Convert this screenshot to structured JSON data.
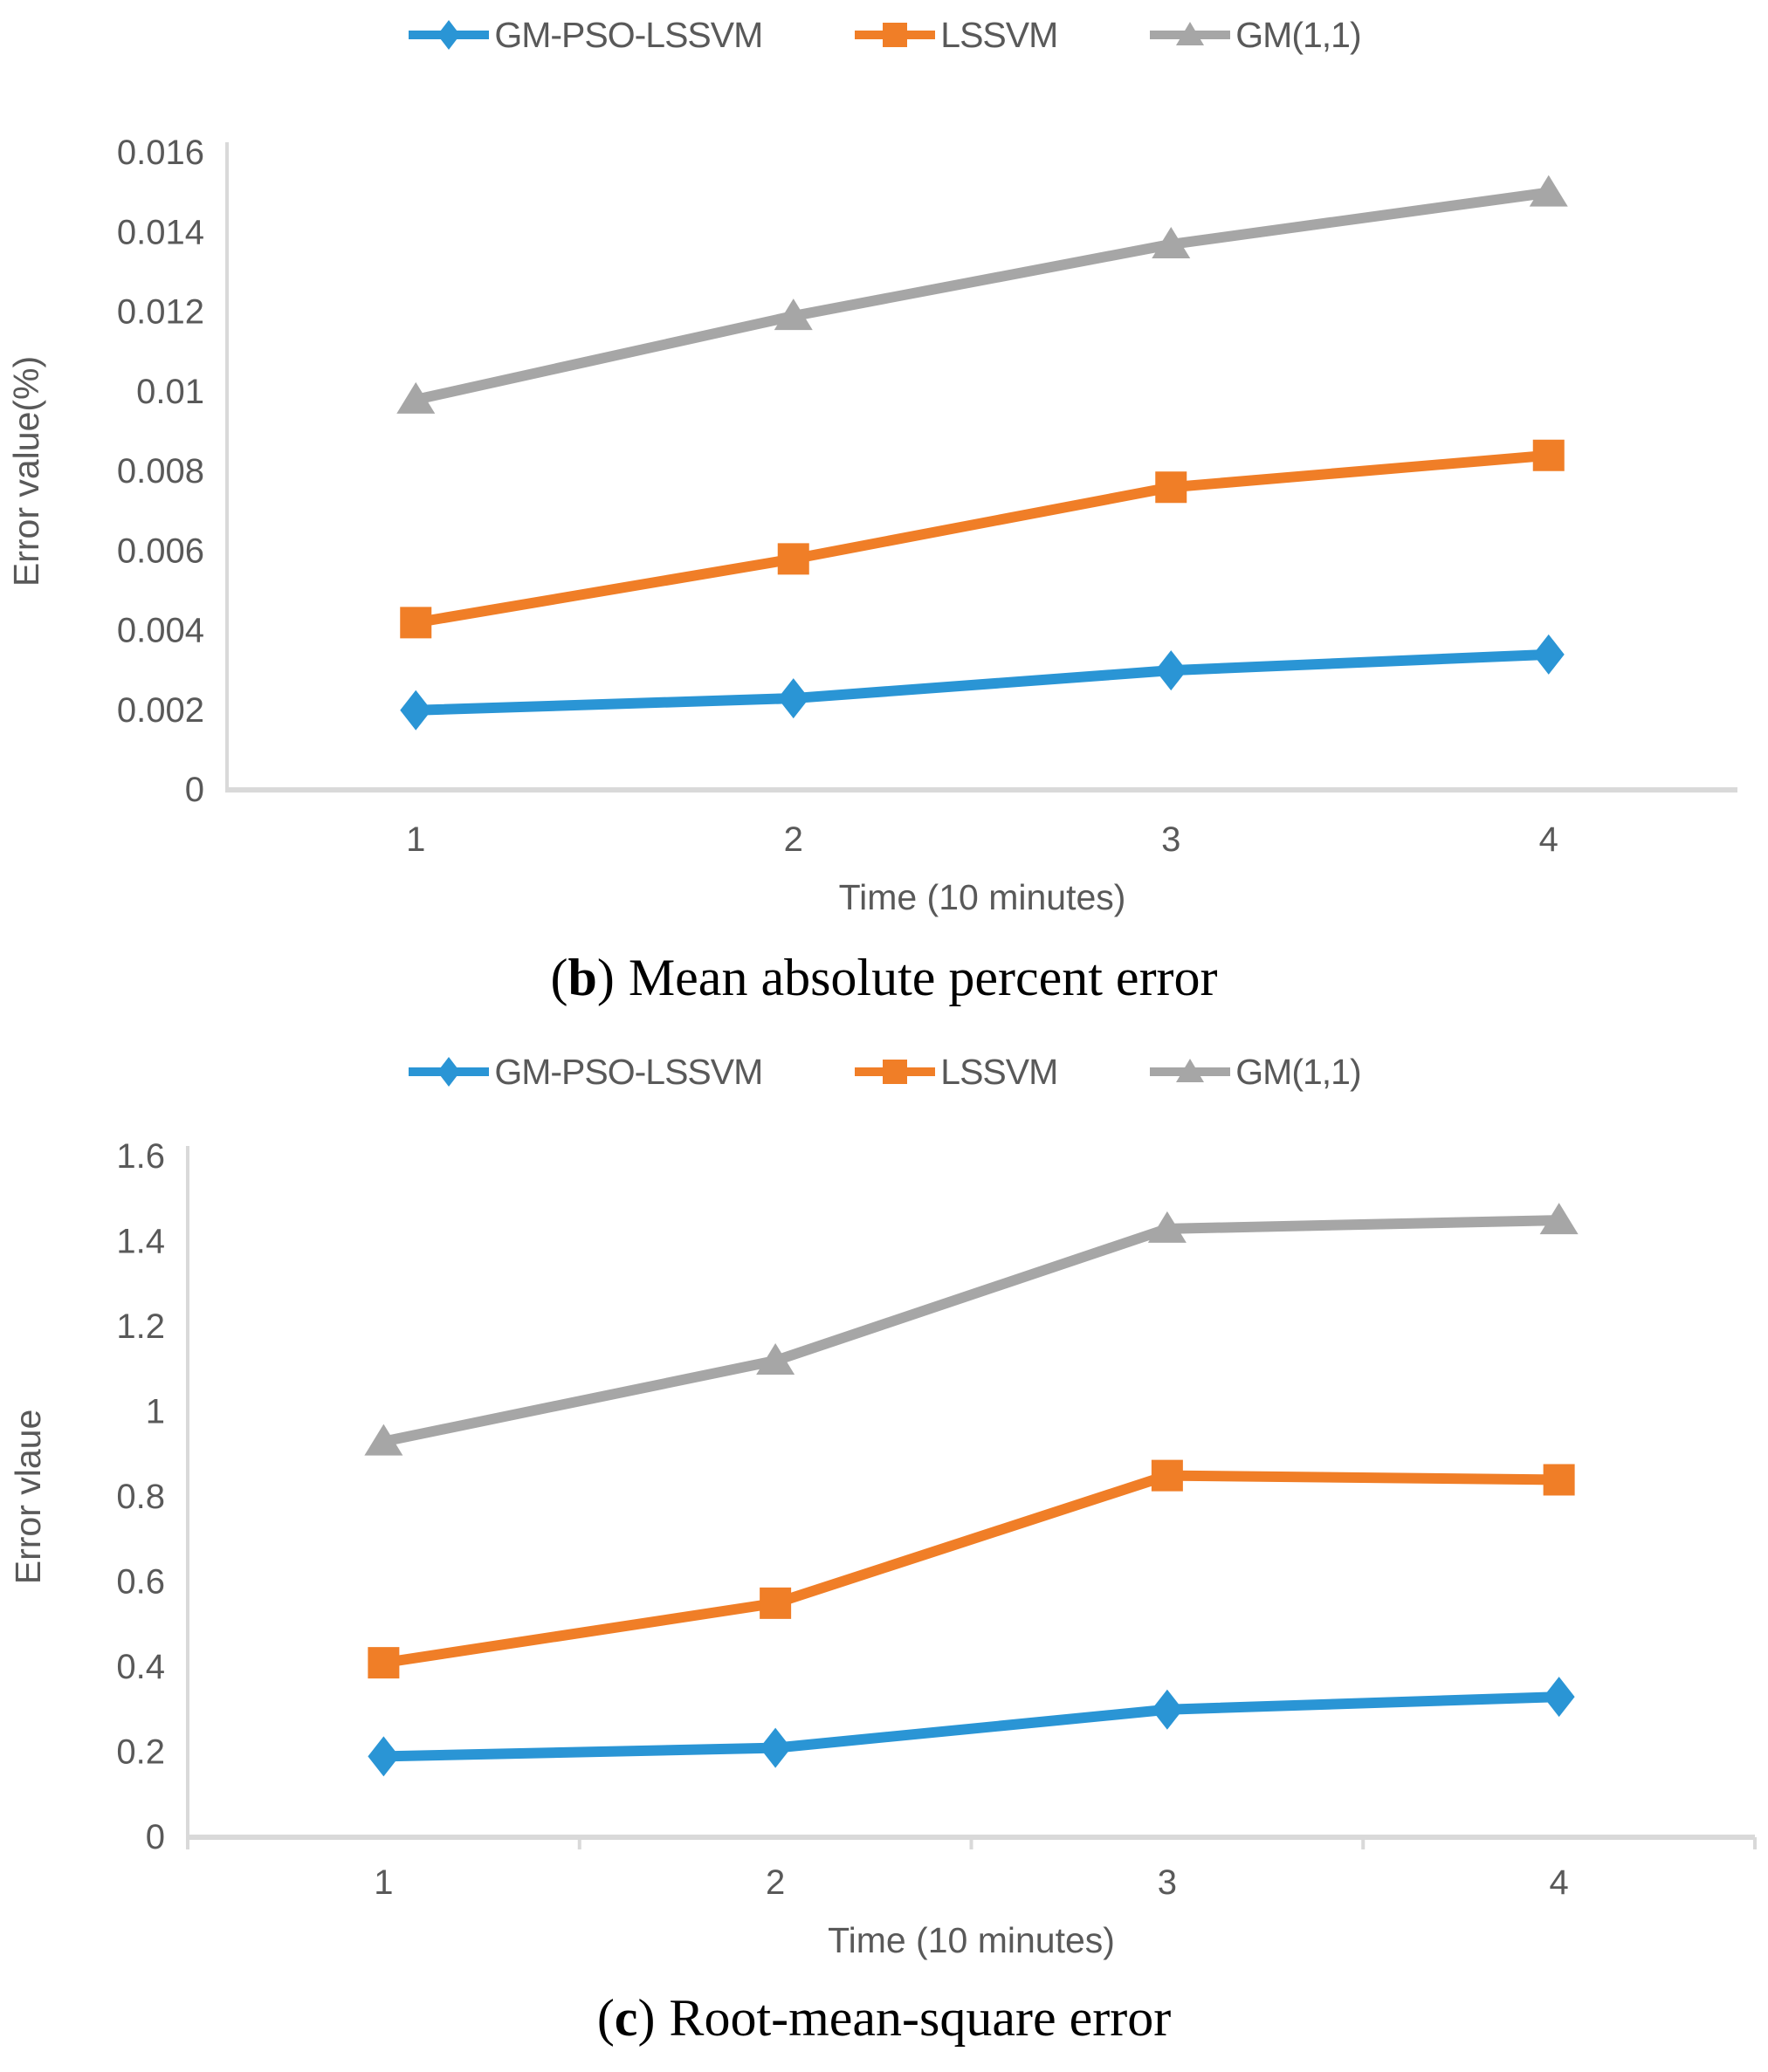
{
  "legend": {
    "items": [
      {
        "label": "GM-PSO-LSSVM",
        "marker": "diamond",
        "color": "#2A95D5"
      },
      {
        "label": "LSSVM",
        "marker": "square",
        "color": "#F07E27"
      },
      {
        "label": "GM(1,1)",
        "marker": "triangle",
        "color": "#A6A6A6"
      }
    ]
  },
  "colors": {
    "axis_line": "#D9D9D9",
    "tick_text": "#595959",
    "series_blue": "#2A95D5",
    "series_orange": "#F07E27",
    "series_gray": "#A6A6A6"
  },
  "chart_data": [
    {
      "id": "mape",
      "type": "line",
      "title": "(b) Mean absolute percent error",
      "xlabel": "Time (10 minutes)",
      "ylabel": "Error value(%)",
      "categories": [
        "1",
        "2",
        "3",
        "4"
      ],
      "ylim": [
        0,
        0.016
      ],
      "yticks": [
        "0",
        "0.002",
        "0.004",
        "0.006",
        "0.008",
        "0.01",
        "0.012",
        "0.014",
        "0.016"
      ],
      "grid": false,
      "legend_position": "top",
      "x_boundary_ticks": false,
      "series": [
        {
          "name": "GM-PSO-LSSVM",
          "marker": "diamond",
          "color": "#2A95D5",
          "values": [
            0.002,
            0.0023,
            0.003,
            0.0034
          ]
        },
        {
          "name": "LSSVM",
          "marker": "square",
          "color": "#F07E27",
          "values": [
            0.0042,
            0.0058,
            0.0076,
            0.0084
          ]
        },
        {
          "name": "GM(1,1)",
          "marker": "triangle",
          "color": "#A6A6A6",
          "values": [
            0.0098,
            0.0119,
            0.0137,
            0.015
          ]
        }
      ]
    },
    {
      "id": "rmse",
      "type": "line",
      "title": "(c) Root-mean-square error",
      "xlabel": "Time (10 minutes)",
      "ylabel": "Error vlaue",
      "categories": [
        "1",
        "2",
        "3",
        "4"
      ],
      "ylim": [
        0,
        1.6
      ],
      "yticks": [
        "0",
        "0.2",
        "0.4",
        "0.6",
        "0.8",
        "1",
        "1.2",
        "1.4",
        "1.6"
      ],
      "grid": false,
      "legend_position": "top",
      "x_boundary_ticks": true,
      "series": [
        {
          "name": "GM-PSO-LSSVM",
          "marker": "diamond",
          "color": "#2A95D5",
          "values": [
            0.19,
            0.21,
            0.3,
            0.33
          ]
        },
        {
          "name": "LSSVM",
          "marker": "square",
          "color": "#F07E27",
          "values": [
            0.41,
            0.55,
            0.85,
            0.84
          ]
        },
        {
          "name": "GM(1,1)",
          "marker": "triangle",
          "color": "#A6A6A6",
          "values": [
            0.93,
            1.12,
            1.43,
            1.45
          ]
        }
      ]
    }
  ],
  "captions": {
    "b": {
      "open": "(",
      "letter": "b",
      "close": ")",
      "text": "Mean absolute percent error"
    },
    "c": {
      "open": "(",
      "letter": "c",
      "close": ")",
      "text": "Root-mean-square error"
    }
  }
}
